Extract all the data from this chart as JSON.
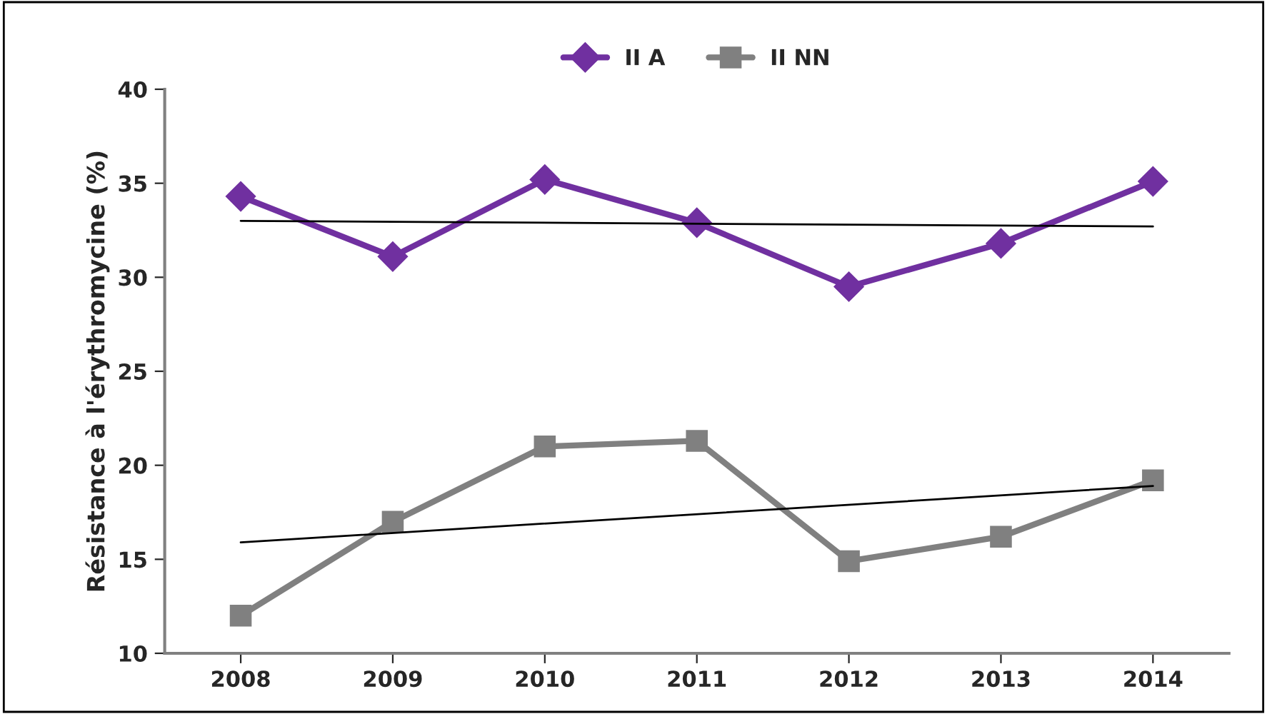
{
  "chart_data": {
    "type": "line",
    "ylabel": "Résistance à l'érythromycine (%)",
    "categories": [
      "2008",
      "2009",
      "2010",
      "2011",
      "2012",
      "2013",
      "2014"
    ],
    "series": [
      {
        "name": "II A",
        "color": "#7030a0",
        "marker": "diamond",
        "values": [
          34.3,
          31.1,
          35.2,
          32.9,
          29.5,
          31.8,
          35.1
        ]
      },
      {
        "name": "II NN",
        "color": "#808080",
        "marker": "square",
        "values": [
          12.0,
          17.0,
          21.0,
          21.3,
          14.9,
          16.2,
          19.2
        ]
      },
      {
        "type": "line",
        "color": "#000000",
        "marker": "none",
        "values": [
          33.0,
          null,
          null,
          null,
          null,
          null,
          32.7
        ]
      },
      {
        "type": "line",
        "color": "#000000",
        "marker": "none",
        "values": [
          15.9,
          null,
          null,
          null,
          null,
          null,
          18.9
        ]
      }
    ],
    "ylim": [
      10,
      40
    ],
    "yticks": [
      10,
      15,
      20,
      25,
      30,
      35,
      40
    ],
    "grid": false,
    "legend": "top"
  }
}
